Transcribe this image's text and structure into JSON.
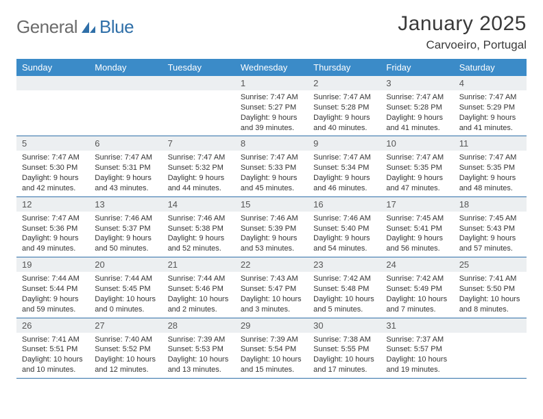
{
  "logo": {
    "word1": "General",
    "word2": "Blue"
  },
  "title": "January 2025",
  "location": "Carvoeiro, Portugal",
  "colors": {
    "header_bg": "#3b8bc8",
    "header_text": "#ffffff",
    "rule": "#2f6fa8",
    "daynum_bg": "#eceff1",
    "body_text": "#333333",
    "logo_gray": "#6b6b6b",
    "logo_blue": "#2f6fa8",
    "page_bg": "#ffffff"
  },
  "typography": {
    "title_fontsize": 30,
    "location_fontsize": 17,
    "weekday_fontsize": 13,
    "daynum_fontsize": 13,
    "body_fontsize": 11
  },
  "weekdays": [
    "Sunday",
    "Monday",
    "Tuesday",
    "Wednesday",
    "Thursday",
    "Friday",
    "Saturday"
  ],
  "weeks": [
    [
      null,
      null,
      null,
      {
        "n": "1",
        "sunrise": "Sunrise: 7:47 AM",
        "sunset": "Sunset: 5:27 PM",
        "d1": "Daylight: 9 hours",
        "d2": "and 39 minutes."
      },
      {
        "n": "2",
        "sunrise": "Sunrise: 7:47 AM",
        "sunset": "Sunset: 5:28 PM",
        "d1": "Daylight: 9 hours",
        "d2": "and 40 minutes."
      },
      {
        "n": "3",
        "sunrise": "Sunrise: 7:47 AM",
        "sunset": "Sunset: 5:28 PM",
        "d1": "Daylight: 9 hours",
        "d2": "and 41 minutes."
      },
      {
        "n": "4",
        "sunrise": "Sunrise: 7:47 AM",
        "sunset": "Sunset: 5:29 PM",
        "d1": "Daylight: 9 hours",
        "d2": "and 41 minutes."
      }
    ],
    [
      {
        "n": "5",
        "sunrise": "Sunrise: 7:47 AM",
        "sunset": "Sunset: 5:30 PM",
        "d1": "Daylight: 9 hours",
        "d2": "and 42 minutes."
      },
      {
        "n": "6",
        "sunrise": "Sunrise: 7:47 AM",
        "sunset": "Sunset: 5:31 PM",
        "d1": "Daylight: 9 hours",
        "d2": "and 43 minutes."
      },
      {
        "n": "7",
        "sunrise": "Sunrise: 7:47 AM",
        "sunset": "Sunset: 5:32 PM",
        "d1": "Daylight: 9 hours",
        "d2": "and 44 minutes."
      },
      {
        "n": "8",
        "sunrise": "Sunrise: 7:47 AM",
        "sunset": "Sunset: 5:33 PM",
        "d1": "Daylight: 9 hours",
        "d2": "and 45 minutes."
      },
      {
        "n": "9",
        "sunrise": "Sunrise: 7:47 AM",
        "sunset": "Sunset: 5:34 PM",
        "d1": "Daylight: 9 hours",
        "d2": "and 46 minutes."
      },
      {
        "n": "10",
        "sunrise": "Sunrise: 7:47 AM",
        "sunset": "Sunset: 5:35 PM",
        "d1": "Daylight: 9 hours",
        "d2": "and 47 minutes."
      },
      {
        "n": "11",
        "sunrise": "Sunrise: 7:47 AM",
        "sunset": "Sunset: 5:35 PM",
        "d1": "Daylight: 9 hours",
        "d2": "and 48 minutes."
      }
    ],
    [
      {
        "n": "12",
        "sunrise": "Sunrise: 7:47 AM",
        "sunset": "Sunset: 5:36 PM",
        "d1": "Daylight: 9 hours",
        "d2": "and 49 minutes."
      },
      {
        "n": "13",
        "sunrise": "Sunrise: 7:46 AM",
        "sunset": "Sunset: 5:37 PM",
        "d1": "Daylight: 9 hours",
        "d2": "and 50 minutes."
      },
      {
        "n": "14",
        "sunrise": "Sunrise: 7:46 AM",
        "sunset": "Sunset: 5:38 PM",
        "d1": "Daylight: 9 hours",
        "d2": "and 52 minutes."
      },
      {
        "n": "15",
        "sunrise": "Sunrise: 7:46 AM",
        "sunset": "Sunset: 5:39 PM",
        "d1": "Daylight: 9 hours",
        "d2": "and 53 minutes."
      },
      {
        "n": "16",
        "sunrise": "Sunrise: 7:46 AM",
        "sunset": "Sunset: 5:40 PM",
        "d1": "Daylight: 9 hours",
        "d2": "and 54 minutes."
      },
      {
        "n": "17",
        "sunrise": "Sunrise: 7:45 AM",
        "sunset": "Sunset: 5:41 PM",
        "d1": "Daylight: 9 hours",
        "d2": "and 56 minutes."
      },
      {
        "n": "18",
        "sunrise": "Sunrise: 7:45 AM",
        "sunset": "Sunset: 5:43 PM",
        "d1": "Daylight: 9 hours",
        "d2": "and 57 minutes."
      }
    ],
    [
      {
        "n": "19",
        "sunrise": "Sunrise: 7:44 AM",
        "sunset": "Sunset: 5:44 PM",
        "d1": "Daylight: 9 hours",
        "d2": "and 59 minutes."
      },
      {
        "n": "20",
        "sunrise": "Sunrise: 7:44 AM",
        "sunset": "Sunset: 5:45 PM",
        "d1": "Daylight: 10 hours",
        "d2": "and 0 minutes."
      },
      {
        "n": "21",
        "sunrise": "Sunrise: 7:44 AM",
        "sunset": "Sunset: 5:46 PM",
        "d1": "Daylight: 10 hours",
        "d2": "and 2 minutes."
      },
      {
        "n": "22",
        "sunrise": "Sunrise: 7:43 AM",
        "sunset": "Sunset: 5:47 PM",
        "d1": "Daylight: 10 hours",
        "d2": "and 3 minutes."
      },
      {
        "n": "23",
        "sunrise": "Sunrise: 7:42 AM",
        "sunset": "Sunset: 5:48 PM",
        "d1": "Daylight: 10 hours",
        "d2": "and 5 minutes."
      },
      {
        "n": "24",
        "sunrise": "Sunrise: 7:42 AM",
        "sunset": "Sunset: 5:49 PM",
        "d1": "Daylight: 10 hours",
        "d2": "and 7 minutes."
      },
      {
        "n": "25",
        "sunrise": "Sunrise: 7:41 AM",
        "sunset": "Sunset: 5:50 PM",
        "d1": "Daylight: 10 hours",
        "d2": "and 8 minutes."
      }
    ],
    [
      {
        "n": "26",
        "sunrise": "Sunrise: 7:41 AM",
        "sunset": "Sunset: 5:51 PM",
        "d1": "Daylight: 10 hours",
        "d2": "and 10 minutes."
      },
      {
        "n": "27",
        "sunrise": "Sunrise: 7:40 AM",
        "sunset": "Sunset: 5:52 PM",
        "d1": "Daylight: 10 hours",
        "d2": "and 12 minutes."
      },
      {
        "n": "28",
        "sunrise": "Sunrise: 7:39 AM",
        "sunset": "Sunset: 5:53 PM",
        "d1": "Daylight: 10 hours",
        "d2": "and 13 minutes."
      },
      {
        "n": "29",
        "sunrise": "Sunrise: 7:39 AM",
        "sunset": "Sunset: 5:54 PM",
        "d1": "Daylight: 10 hours",
        "d2": "and 15 minutes."
      },
      {
        "n": "30",
        "sunrise": "Sunrise: 7:38 AM",
        "sunset": "Sunset: 5:55 PM",
        "d1": "Daylight: 10 hours",
        "d2": "and 17 minutes."
      },
      {
        "n": "31",
        "sunrise": "Sunrise: 7:37 AM",
        "sunset": "Sunset: 5:57 PM",
        "d1": "Daylight: 10 hours",
        "d2": "and 19 minutes."
      },
      null
    ]
  ]
}
